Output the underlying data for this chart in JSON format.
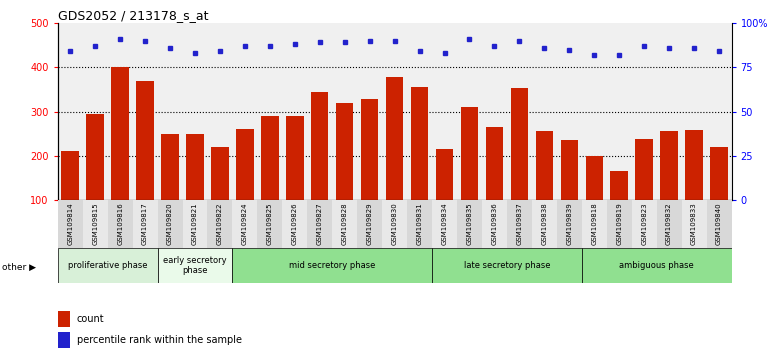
{
  "title": "GDS2052 / 213178_s_at",
  "samples": [
    "GSM109814",
    "GSM109815",
    "GSM109816",
    "GSM109817",
    "GSM109820",
    "GSM109821",
    "GSM109822",
    "GSM109824",
    "GSM109825",
    "GSM109826",
    "GSM109827",
    "GSM109828",
    "GSM109829",
    "GSM109830",
    "GSM109831",
    "GSM109834",
    "GSM109835",
    "GSM109836",
    "GSM109837",
    "GSM109838",
    "GSM109839",
    "GSM109818",
    "GSM109819",
    "GSM109823",
    "GSM109832",
    "GSM109833",
    "GSM109840"
  ],
  "bar_values": [
    210,
    295,
    400,
    370,
    250,
    250,
    220,
    260,
    290,
    290,
    345,
    320,
    328,
    378,
    355,
    215,
    310,
    265,
    353,
    255,
    235,
    200,
    165,
    238,
    255,
    258,
    220
  ],
  "percentile_values": [
    84,
    87,
    91,
    90,
    86,
    83,
    84,
    87,
    87,
    88,
    89,
    89,
    90,
    90,
    84,
    83,
    91,
    87,
    90,
    86,
    85,
    82,
    82,
    87,
    86,
    86,
    84
  ],
  "phases": [
    {
      "label": "proliferative phase",
      "start": 0,
      "end": 4,
      "color": "#d8f0d8"
    },
    {
      "label": "early secretory\nphase",
      "start": 4,
      "end": 7,
      "color": "#eafaea"
    },
    {
      "label": "mid secretory phase",
      "start": 7,
      "end": 15,
      "color": "#90e090"
    },
    {
      "label": "late secretory phase",
      "start": 15,
      "end": 21,
      "color": "#90e090"
    },
    {
      "label": "ambiguous phase",
      "start": 21,
      "end": 27,
      "color": "#90e090"
    }
  ],
  "bar_color": "#cc2200",
  "dot_color": "#2222cc",
  "ylim_left": [
    100,
    500
  ],
  "ylim_right": [
    0,
    100
  ],
  "yticks_left": [
    100,
    200,
    300,
    400,
    500
  ],
  "yticks_right": [
    0,
    25,
    50,
    75,
    100
  ],
  "yticklabels_right": [
    "0",
    "25",
    "50",
    "75",
    "100%"
  ]
}
